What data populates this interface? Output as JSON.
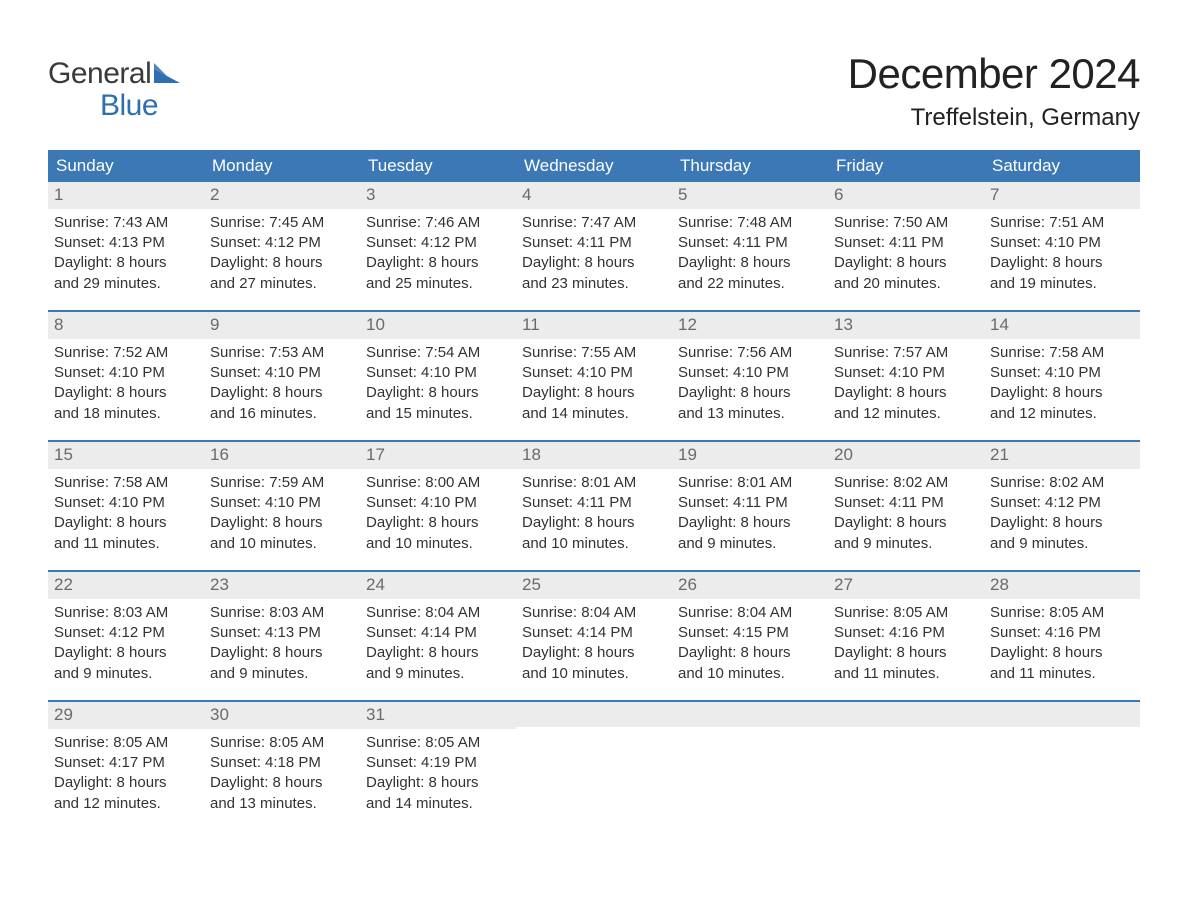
{
  "logo": {
    "text_general": "General",
    "text_blue": "Blue",
    "mark_color": "#2e6fb0"
  },
  "header": {
    "month_title": "December 2024",
    "location": "Treffelstein, Germany"
  },
  "styling": {
    "header_bg": "#3b78b5",
    "header_text": "#ffffff",
    "daynum_bg": "#ececec",
    "daynum_text": "#6a6a6a",
    "body_text": "#333333",
    "week_border": "#3b78b5",
    "page_bg": "#ffffff",
    "month_title_fontsize": 42,
    "location_fontsize": 24,
    "weekday_fontsize": 17,
    "cell_fontsize": 15,
    "columns": 7
  },
  "weekdays": [
    "Sunday",
    "Monday",
    "Tuesday",
    "Wednesday",
    "Thursday",
    "Friday",
    "Saturday"
  ],
  "weeks": [
    [
      {
        "n": "1",
        "sunrise": "Sunrise: 7:43 AM",
        "sunset": "Sunset: 4:13 PM",
        "d1": "Daylight: 8 hours",
        "d2": "and 29 minutes."
      },
      {
        "n": "2",
        "sunrise": "Sunrise: 7:45 AM",
        "sunset": "Sunset: 4:12 PM",
        "d1": "Daylight: 8 hours",
        "d2": "and 27 minutes."
      },
      {
        "n": "3",
        "sunrise": "Sunrise: 7:46 AM",
        "sunset": "Sunset: 4:12 PM",
        "d1": "Daylight: 8 hours",
        "d2": "and 25 minutes."
      },
      {
        "n": "4",
        "sunrise": "Sunrise: 7:47 AM",
        "sunset": "Sunset: 4:11 PM",
        "d1": "Daylight: 8 hours",
        "d2": "and 23 minutes."
      },
      {
        "n": "5",
        "sunrise": "Sunrise: 7:48 AM",
        "sunset": "Sunset: 4:11 PM",
        "d1": "Daylight: 8 hours",
        "d2": "and 22 minutes."
      },
      {
        "n": "6",
        "sunrise": "Sunrise: 7:50 AM",
        "sunset": "Sunset: 4:11 PM",
        "d1": "Daylight: 8 hours",
        "d2": "and 20 minutes."
      },
      {
        "n": "7",
        "sunrise": "Sunrise: 7:51 AM",
        "sunset": "Sunset: 4:10 PM",
        "d1": "Daylight: 8 hours",
        "d2": "and 19 minutes."
      }
    ],
    [
      {
        "n": "8",
        "sunrise": "Sunrise: 7:52 AM",
        "sunset": "Sunset: 4:10 PM",
        "d1": "Daylight: 8 hours",
        "d2": "and 18 minutes."
      },
      {
        "n": "9",
        "sunrise": "Sunrise: 7:53 AM",
        "sunset": "Sunset: 4:10 PM",
        "d1": "Daylight: 8 hours",
        "d2": "and 16 minutes."
      },
      {
        "n": "10",
        "sunrise": "Sunrise: 7:54 AM",
        "sunset": "Sunset: 4:10 PM",
        "d1": "Daylight: 8 hours",
        "d2": "and 15 minutes."
      },
      {
        "n": "11",
        "sunrise": "Sunrise: 7:55 AM",
        "sunset": "Sunset: 4:10 PM",
        "d1": "Daylight: 8 hours",
        "d2": "and 14 minutes."
      },
      {
        "n": "12",
        "sunrise": "Sunrise: 7:56 AM",
        "sunset": "Sunset: 4:10 PM",
        "d1": "Daylight: 8 hours",
        "d2": "and 13 minutes."
      },
      {
        "n": "13",
        "sunrise": "Sunrise: 7:57 AM",
        "sunset": "Sunset: 4:10 PM",
        "d1": "Daylight: 8 hours",
        "d2": "and 12 minutes."
      },
      {
        "n": "14",
        "sunrise": "Sunrise: 7:58 AM",
        "sunset": "Sunset: 4:10 PM",
        "d1": "Daylight: 8 hours",
        "d2": "and 12 minutes."
      }
    ],
    [
      {
        "n": "15",
        "sunrise": "Sunrise: 7:58 AM",
        "sunset": "Sunset: 4:10 PM",
        "d1": "Daylight: 8 hours",
        "d2": "and 11 minutes."
      },
      {
        "n": "16",
        "sunrise": "Sunrise: 7:59 AM",
        "sunset": "Sunset: 4:10 PM",
        "d1": "Daylight: 8 hours",
        "d2": "and 10 minutes."
      },
      {
        "n": "17",
        "sunrise": "Sunrise: 8:00 AM",
        "sunset": "Sunset: 4:10 PM",
        "d1": "Daylight: 8 hours",
        "d2": "and 10 minutes."
      },
      {
        "n": "18",
        "sunrise": "Sunrise: 8:01 AM",
        "sunset": "Sunset: 4:11 PM",
        "d1": "Daylight: 8 hours",
        "d2": "and 10 minutes."
      },
      {
        "n": "19",
        "sunrise": "Sunrise: 8:01 AM",
        "sunset": "Sunset: 4:11 PM",
        "d1": "Daylight: 8 hours",
        "d2": "and 9 minutes."
      },
      {
        "n": "20",
        "sunrise": "Sunrise: 8:02 AM",
        "sunset": "Sunset: 4:11 PM",
        "d1": "Daylight: 8 hours",
        "d2": "and 9 minutes."
      },
      {
        "n": "21",
        "sunrise": "Sunrise: 8:02 AM",
        "sunset": "Sunset: 4:12 PM",
        "d1": "Daylight: 8 hours",
        "d2": "and 9 minutes."
      }
    ],
    [
      {
        "n": "22",
        "sunrise": "Sunrise: 8:03 AM",
        "sunset": "Sunset: 4:12 PM",
        "d1": "Daylight: 8 hours",
        "d2": "and 9 minutes."
      },
      {
        "n": "23",
        "sunrise": "Sunrise: 8:03 AM",
        "sunset": "Sunset: 4:13 PM",
        "d1": "Daylight: 8 hours",
        "d2": "and 9 minutes."
      },
      {
        "n": "24",
        "sunrise": "Sunrise: 8:04 AM",
        "sunset": "Sunset: 4:14 PM",
        "d1": "Daylight: 8 hours",
        "d2": "and 9 minutes."
      },
      {
        "n": "25",
        "sunrise": "Sunrise: 8:04 AM",
        "sunset": "Sunset: 4:14 PM",
        "d1": "Daylight: 8 hours",
        "d2": "and 10 minutes."
      },
      {
        "n": "26",
        "sunrise": "Sunrise: 8:04 AM",
        "sunset": "Sunset: 4:15 PM",
        "d1": "Daylight: 8 hours",
        "d2": "and 10 minutes."
      },
      {
        "n": "27",
        "sunrise": "Sunrise: 8:05 AM",
        "sunset": "Sunset: 4:16 PM",
        "d1": "Daylight: 8 hours",
        "d2": "and 11 minutes."
      },
      {
        "n": "28",
        "sunrise": "Sunrise: 8:05 AM",
        "sunset": "Sunset: 4:16 PM",
        "d1": "Daylight: 8 hours",
        "d2": "and 11 minutes."
      }
    ],
    [
      {
        "n": "29",
        "sunrise": "Sunrise: 8:05 AM",
        "sunset": "Sunset: 4:17 PM",
        "d1": "Daylight: 8 hours",
        "d2": "and 12 minutes."
      },
      {
        "n": "30",
        "sunrise": "Sunrise: 8:05 AM",
        "sunset": "Sunset: 4:18 PM",
        "d1": "Daylight: 8 hours",
        "d2": "and 13 minutes."
      },
      {
        "n": "31",
        "sunrise": "Sunrise: 8:05 AM",
        "sunset": "Sunset: 4:19 PM",
        "d1": "Daylight: 8 hours",
        "d2": "and 14 minutes."
      },
      {
        "empty": true
      },
      {
        "empty": true
      },
      {
        "empty": true
      },
      {
        "empty": true
      }
    ]
  ]
}
